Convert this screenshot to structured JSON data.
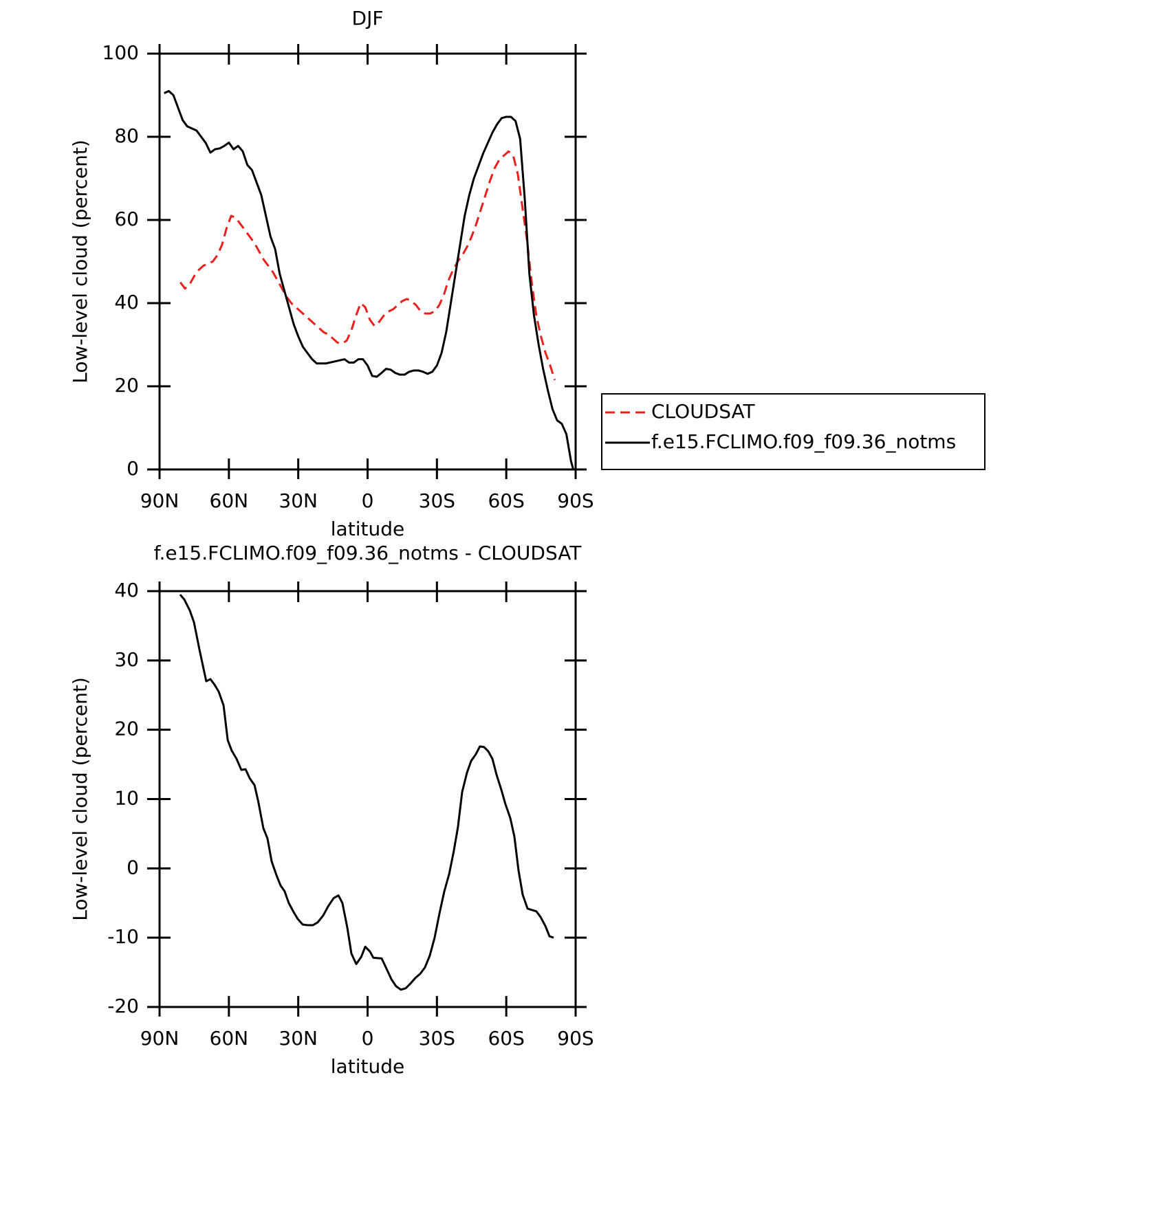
{
  "chart_data": [
    {
      "type": "line",
      "title": "DJF",
      "x_label": "latitude",
      "y_label": "Low-level cloud (percent)",
      "xlim": [
        90,
        -90
      ],
      "xticks": [
        {
          "value": 90,
          "label": "90N"
        },
        {
          "value": 60,
          "label": "60N"
        },
        {
          "value": 30,
          "label": "30N"
        },
        0,
        {
          "value": -30,
          "label": "30S"
        },
        {
          "value": -60,
          "label": "60S"
        },
        {
          "value": -90,
          "label": "90S"
        }
      ],
      "ylim": [
        0,
        100
      ],
      "yticks": [
        0,
        20,
        40,
        60,
        80,
        100
      ],
      "legend": "outside right",
      "series": [
        {
          "name": "CLOUDSAT",
          "color": "#e8201e",
          "dashed": true,
          "x": [
            81,
            79,
            77,
            75,
            73,
            71,
            69,
            67,
            65,
            63,
            61,
            59,
            57,
            55,
            53,
            51,
            49,
            47,
            45,
            43,
            41,
            39,
            37,
            35,
            33,
            31,
            29,
            27,
            25,
            23,
            21,
            19,
            17,
            15,
            13,
            11,
            9,
            7,
            5,
            3,
            1,
            -1,
            -3,
            -5,
            -7,
            -9,
            -11,
            -13,
            -15,
            -17,
            -19,
            -21,
            -23,
            -25,
            -27,
            -29,
            -31,
            -33,
            -35,
            -37,
            -39,
            -41,
            -43,
            -45,
            -47,
            -49,
            -51,
            -53,
            -55,
            -57,
            -59,
            -61,
            -63,
            -65,
            -67,
            -69,
            -71,
            -73,
            -75,
            -77,
            -79,
            -81
          ],
          "values": [
            45,
            43.5,
            44.5,
            46.5,
            48,
            49,
            49.5,
            50,
            51.5,
            54,
            58,
            61,
            60.5,
            59,
            57.5,
            56,
            54.5,
            52.5,
            50.5,
            49,
            47.5,
            45.5,
            43.5,
            41.5,
            40,
            39,
            38,
            37,
            36,
            35,
            34,
            33,
            32.5,
            31.5,
            30.5,
            30.3,
            31,
            33.5,
            37,
            40,
            39,
            36,
            34.5,
            35.5,
            37,
            38,
            38.5,
            39.5,
            40.5,
            41,
            40.5,
            39.5,
            38,
            37.5,
            37.5,
            38,
            39.5,
            42,
            45.5,
            48,
            50,
            51.5,
            53.5,
            56,
            59,
            62.5,
            66,
            69.5,
            72.5,
            74.5,
            75.5,
            76.5,
            75.5,
            71,
            63,
            55,
            45,
            37,
            32,
            28,
            25,
            21.5
          ]
        },
        {
          "name": "f.e15.FCLIMO.f09_f09.36_notms",
          "color": "#000000",
          "dashed": false,
          "x": [
            88,
            86,
            84,
            82,
            80,
            78,
            74,
            72,
            70,
            68,
            66,
            64,
            62,
            60,
            58,
            56,
            54,
            52,
            50,
            48,
            46,
            44,
            42,
            40,
            38,
            36,
            34,
            32,
            30,
            28,
            26,
            24,
            22,
            20,
            18,
            14,
            10,
            8,
            6,
            4,
            2,
            0,
            -2,
            -4,
            -6,
            -8,
            -10,
            -12,
            -14,
            -16,
            -18,
            -20,
            -22,
            -24,
            -26,
            -28,
            -30,
            -32,
            -34,
            -36,
            -38,
            -40,
            -42,
            -44,
            -46,
            -48,
            -50,
            -52,
            -54,
            -56,
            -58,
            -60,
            -62,
            -64,
            -66,
            -68,
            -70,
            -72,
            -74,
            -76,
            -78,
            -80,
            -82,
            -84,
            -86,
            -88,
            -89
          ],
          "values": [
            90.5,
            91,
            90,
            87,
            84,
            82.5,
            81.5,
            80,
            78.5,
            76.2,
            77,
            77.2,
            77.8,
            78.6,
            77,
            77.8,
            76.5,
            73.2,
            72,
            69,
            66,
            61,
            56,
            53,
            47,
            43,
            39,
            35,
            32,
            29.5,
            28,
            26.5,
            25.5,
            25.5,
            25.5,
            26,
            26.5,
            25.7,
            25.7,
            26.5,
            26.5,
            25,
            22.5,
            22.3,
            23.2,
            24.2,
            24,
            23.2,
            22.8,
            22.8,
            23.5,
            23.8,
            23.8,
            23.5,
            23,
            23.5,
            25,
            28,
            33,
            40,
            47,
            54,
            61,
            66,
            70,
            73,
            76,
            78.5,
            81,
            83,
            84.5,
            84.8,
            84.8,
            83.8,
            79.5,
            65,
            47,
            37,
            30,
            24,
            19,
            14.5,
            11.8,
            11,
            8.5,
            2,
            0
          ]
        }
      ]
    },
    {
      "type": "line",
      "title": "f.e15.FCLIMO.f09_f09.36_notms - CLOUDSAT",
      "x_label": "latitude",
      "y_label": "Low-level cloud (percent)",
      "xlim": [
        90,
        -90
      ],
      "xticks": [
        {
          "value": 90,
          "label": "90N"
        },
        {
          "value": 60,
          "label": "60N"
        },
        {
          "value": 30,
          "label": "30N"
        },
        0,
        {
          "value": -30,
          "label": "30S"
        },
        {
          "value": -60,
          "label": "60S"
        },
        {
          "value": -90,
          "label": "90S"
        }
      ],
      "ylim": [
        -20,
        40
      ],
      "yticks": [
        -20,
        -10,
        0,
        10,
        20,
        30,
        40
      ],
      "color": "#000000",
      "x": [
        81.1,
        79.3,
        76.9,
        75.1,
        72.7,
        69.8,
        68.0,
        66.2,
        64.4,
        62.3,
        60.5,
        58.8,
        56.7,
        54.6,
        52.8,
        51.0,
        48.9,
        47.2,
        45.1,
        43.3,
        41.5,
        39.4,
        37.6,
        35.9,
        34.1,
        32.0,
        30.2,
        28.1,
        26.0,
        23.7,
        21.6,
        19.2,
        17.1,
        14.7,
        12.6,
        10.9,
        8.8,
        7.0,
        4.9,
        2.8,
        1.0,
        -1.0,
        -2.5,
        -6.1,
        -8.2,
        -10.3,
        -12.3,
        -14.4,
        -16.5,
        -18.6,
        -20.7,
        -22.8,
        -24.8,
        -26.9,
        -29.0,
        -31.1,
        -33.2,
        -35.3,
        -37.3,
        -39.1,
        -40.9,
        -43.0,
        -44.8,
        -46.9,
        -48.6,
        -50.4,
        -52.2,
        -54.0,
        -55.8,
        -57.9,
        -59.6,
        -61.7,
        -63.5,
        -65.3,
        -67.1,
        -69.2,
        -71.0,
        -73.0,
        -74.8,
        -76.9,
        -78.7,
        -80.5
      ],
      "values": [
        39.5,
        38.8,
        37.2,
        35.5,
        31.5,
        27,
        27.3,
        26.5,
        25.5,
        23.5,
        18.5,
        17,
        15.8,
        14.2,
        14.3,
        13,
        12,
        9.5,
        5.8,
        4.3,
        1,
        -1,
        -2.5,
        -3.3,
        -5,
        -6.3,
        -7.3,
        -8.1,
        -8.2,
        -8.2,
        -7.8,
        -6.8,
        -5.5,
        -4.3,
        -3.9,
        -5,
        -8.5,
        -12.3,
        -13.8,
        -12.8,
        -11.3,
        -12,
        -12.9,
        -13,
        -14.5,
        -16,
        -17,
        -17.5,
        -17.3,
        -16.6,
        -15.8,
        -15.2,
        -14.3,
        -12.6,
        -10,
        -6.5,
        -3.3,
        -0.8,
        2.5,
        6,
        11,
        13.8,
        15.5,
        16.5,
        17.6,
        17.5,
        16.9,
        15.8,
        13.5,
        11.3,
        9.3,
        7.3,
        4.6,
        -0.3,
        -3.8,
        -5.8,
        -6,
        -6.2,
        -7,
        -8.3,
        -9.8,
        -10
      ]
    }
  ]
}
